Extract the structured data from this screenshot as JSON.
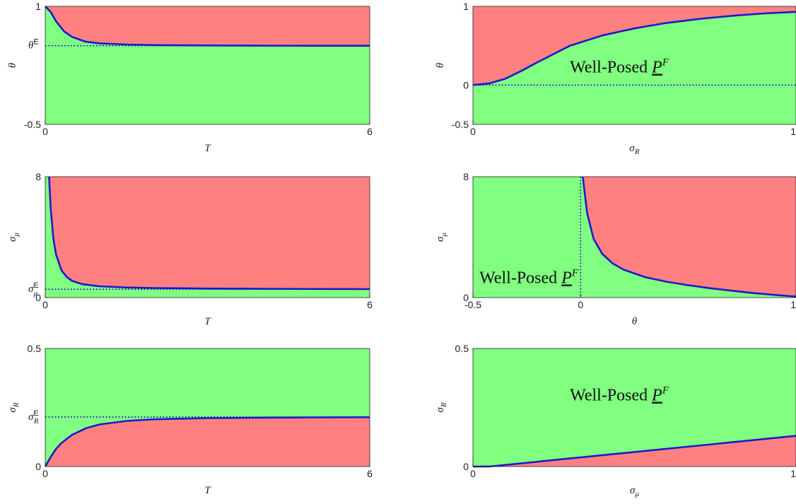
{
  "colors": {
    "stable": "#80ff80",
    "unstable": "#ff8080",
    "curve": "#1a1acc",
    "dotted": "#1a1acc"
  },
  "chart_data": [
    {
      "type": "area",
      "xlabel": "T",
      "ylabel": "θ",
      "xlim": [
        0,
        6
      ],
      "ylim": [
        -0.5,
        1
      ],
      "xticks": [
        "0",
        "6"
      ],
      "yticks": [
        "1",
        "-0.5"
      ],
      "ref_label": {
        "base": "θ",
        "sup": "E"
      },
      "ref_value": 0.5,
      "lower_color": "stable",
      "upper_color": "unstable",
      "curve": {
        "x": [
          0,
          0.1,
          0.2,
          0.35,
          0.5,
          0.75,
          1.0,
          1.5,
          2.0,
          3.0,
          4.0,
          5.0,
          6.0
        ],
        "y": [
          1.0,
          0.93,
          0.81,
          0.68,
          0.61,
          0.55,
          0.53,
          0.515,
          0.508,
          0.503,
          0.501,
          0.5,
          0.5
        ]
      }
    },
    {
      "type": "area",
      "xlabel": "σ_R",
      "ylabel": "θ",
      "xlim": [
        0,
        1
      ],
      "ylim": [
        -0.5,
        1
      ],
      "xticks": [
        "0",
        "1"
      ],
      "yticks": [
        "1",
        "0",
        "-0.5"
      ],
      "ref_value": 0,
      "lower_color": "stable",
      "upper_color": "unstable",
      "annotation": {
        "text": "Well-Posed",
        "script": "P",
        "sup": "F"
      },
      "curve": {
        "x": [
          0,
          0.05,
          0.1,
          0.15,
          0.2,
          0.3,
          0.4,
          0.5,
          0.6,
          0.7,
          0.8,
          0.9,
          1.0
        ],
        "y": [
          0.0,
          0.02,
          0.08,
          0.18,
          0.29,
          0.5,
          0.63,
          0.72,
          0.79,
          0.84,
          0.88,
          0.91,
          0.93
        ]
      }
    },
    {
      "type": "area",
      "xlabel": "T",
      "ylabel": "σ_μ",
      "xlim": [
        0,
        6
      ],
      "ylim": [
        0,
        8
      ],
      "xticks": [
        "0",
        "6"
      ],
      "yticks": [
        "8",
        "0"
      ],
      "ref_label": {
        "base": "σ",
        "sub": "μ",
        "sup": "E"
      },
      "ref_value": 0.55,
      "lower_color": "stable",
      "upper_color": "unstable",
      "curve": {
        "x": [
          0.07,
          0.1,
          0.15,
          0.2,
          0.3,
          0.4,
          0.5,
          0.7,
          1.0,
          1.5,
          2.0,
          3.0,
          4.0,
          5.0,
          6.0
        ],
        "y": [
          8.0,
          5.9,
          3.9,
          2.85,
          1.8,
          1.35,
          1.1,
          0.88,
          0.75,
          0.67,
          0.63,
          0.6,
          0.58,
          0.57,
          0.56
        ]
      }
    },
    {
      "type": "area",
      "xlabel": "θ",
      "ylabel": "σ_μ",
      "xlim": [
        -0.5,
        1
      ],
      "ylim": [
        0,
        8
      ],
      "xticks": [
        "-0.5",
        "0",
        "1"
      ],
      "yticks": [
        "8",
        "0"
      ],
      "ref_x": 0,
      "lower_color": "stable",
      "upper_color": "unstable",
      "annotation": {
        "text": "Well-Posed",
        "script": "P",
        "sup": "F"
      },
      "curve": {
        "x": [
          0.01,
          0.03,
          0.06,
          0.1,
          0.15,
          0.2,
          0.3,
          0.4,
          0.5,
          0.6,
          0.7,
          0.8,
          0.9,
          1.0
        ],
        "y": [
          8.0,
          5.6,
          3.9,
          2.9,
          2.25,
          1.85,
          1.35,
          1.05,
          0.82,
          0.62,
          0.46,
          0.3,
          0.18,
          0.07
        ]
      }
    },
    {
      "type": "area",
      "xlabel": "T",
      "ylabel": "σ_R",
      "xlim": [
        0,
        6
      ],
      "ylim": [
        0,
        0.5
      ],
      "xticks": [
        "0",
        "6"
      ],
      "yticks": [
        "0.5",
        "0"
      ],
      "ref_label": {
        "base": "σ",
        "sub": "R",
        "sup": "E"
      },
      "ref_value": 0.21,
      "lower_color": "unstable",
      "upper_color": "stable",
      "curve": {
        "x": [
          0,
          0.05,
          0.1,
          0.2,
          0.3,
          0.5,
          0.75,
          1.0,
          1.5,
          2.0,
          3.0,
          4.0,
          5.0,
          6.0
        ],
        "y": [
          0.0,
          0.02,
          0.04,
          0.075,
          0.1,
          0.135,
          0.162,
          0.178,
          0.193,
          0.2,
          0.205,
          0.207,
          0.208,
          0.209
        ]
      }
    },
    {
      "type": "area",
      "xlabel": "σ_μ",
      "ylabel": "σ_R",
      "xlim": [
        0,
        1
      ],
      "ylim": [
        0,
        0.5
      ],
      "xticks": [
        "0",
        "1"
      ],
      "yticks": [
        "0.5",
        "0"
      ],
      "lower_color": "unstable",
      "upper_color": "stable",
      "annotation": {
        "text": "Well-Posed",
        "script": "P",
        "sup": "F"
      },
      "curve": {
        "x": [
          0,
          0.05,
          1.0
        ],
        "y": [
          0.0,
          0.0,
          0.13
        ]
      }
    }
  ]
}
